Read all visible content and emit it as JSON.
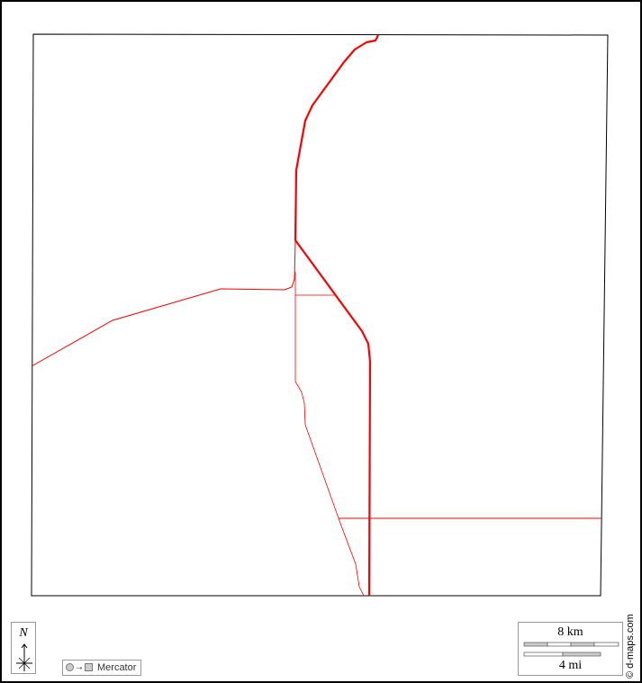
{
  "map": {
    "projection_label": "Mercator",
    "north_label": "N",
    "scale_km_label": "8 km",
    "scale_mi_label": "4 mi",
    "credit": "© d-maps.com",
    "colors": {
      "roads": "#ff0000",
      "frame": "#000000",
      "background": "#ffffff"
    },
    "icons": [
      "north-arrow-icon",
      "projection-circle-to-square-icon"
    ]
  }
}
